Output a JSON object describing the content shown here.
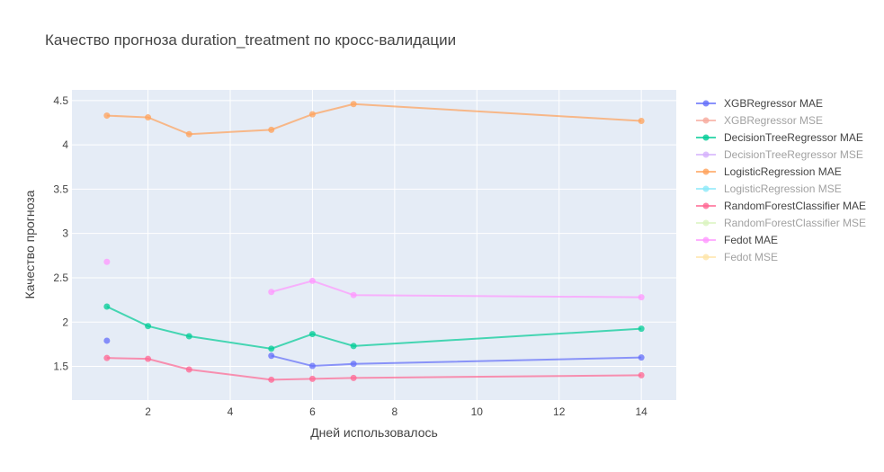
{
  "chart_data": {
    "type": "line",
    "title": "Качество прогноза duration_treatment по кросс-валидации",
    "xlabel": "Дней использовалось",
    "ylabel": "Качество прогноза",
    "xlim": [
      0.15,
      14.85
    ],
    "ylim": [
      1.12,
      4.62
    ],
    "xticks": [
      2,
      4,
      6,
      8,
      10,
      12,
      14
    ],
    "xtick_labels": [
      "2",
      "4",
      "6",
      "8",
      "10",
      "12",
      "14"
    ],
    "yticks": [
      1.5,
      2,
      2.5,
      3,
      3.5,
      4,
      4.5
    ],
    "ytick_labels": [
      "1.5",
      "2",
      "2.5",
      "3",
      "3.5",
      "4",
      "4.5"
    ],
    "grid": true,
    "legend_position": "right",
    "series": [
      {
        "name": "XGBRegressor MAE",
        "color": "#636efa",
        "visible": true,
        "points": [
          [
            1,
            1.79
          ],
          [
            5,
            1.62
          ],
          [
            6,
            1.505
          ],
          [
            7,
            1.528
          ],
          [
            14,
            1.6
          ]
        ],
        "gaps_after": [
          1
        ]
      },
      {
        "name": "XGBRegressor MSE",
        "color": "#EF553B",
        "visible": false,
        "points": [],
        "gaps_after": []
      },
      {
        "name": "DecisionTreeRegressor MAE",
        "color": "#00cc96",
        "visible": true,
        "points": [
          [
            1,
            2.175
          ],
          [
            2,
            1.955
          ],
          [
            3,
            1.84
          ],
          [
            5,
            1.7
          ],
          [
            6,
            1.865
          ],
          [
            7,
            1.73
          ],
          [
            14,
            1.925
          ]
        ],
        "gaps_after": []
      },
      {
        "name": "DecisionTreeRegressor MSE",
        "color": "#ab63fa",
        "visible": false,
        "points": [],
        "gaps_after": []
      },
      {
        "name": "LogisticRegression MAE",
        "color": "#FFA15A",
        "visible": true,
        "points": [
          [
            1,
            4.33
          ],
          [
            2,
            4.31
          ],
          [
            3,
            4.12
          ],
          [
            5,
            4.17
          ],
          [
            6,
            4.345
          ],
          [
            7,
            4.46
          ],
          [
            14,
            4.27
          ]
        ],
        "gaps_after": []
      },
      {
        "name": "LogisticRegression MSE",
        "color": "#19d3f3",
        "visible": false,
        "points": [],
        "gaps_after": []
      },
      {
        "name": "RandomForestClassifier MAE",
        "color": "#FF6692",
        "visible": true,
        "points": [
          [
            1,
            1.595
          ],
          [
            2,
            1.585
          ],
          [
            3,
            1.465
          ],
          [
            5,
            1.35
          ],
          [
            6,
            1.36
          ],
          [
            7,
            1.37
          ],
          [
            14,
            1.4
          ]
        ],
        "gaps_after": []
      },
      {
        "name": "RandomForestClassifier MSE",
        "color": "#B6E880",
        "visible": false,
        "points": [],
        "gaps_after": []
      },
      {
        "name": "Fedot MAE",
        "color": "#FF97FF",
        "visible": true,
        "points": [
          [
            1,
            2.68
          ],
          [
            5,
            2.34
          ],
          [
            6,
            2.465
          ],
          [
            7,
            2.305
          ],
          [
            14,
            2.28
          ]
        ],
        "gaps_after": [
          1
        ]
      },
      {
        "name": "Fedot MSE",
        "color": "#FECB52",
        "visible": false,
        "points": [],
        "gaps_after": []
      }
    ]
  }
}
